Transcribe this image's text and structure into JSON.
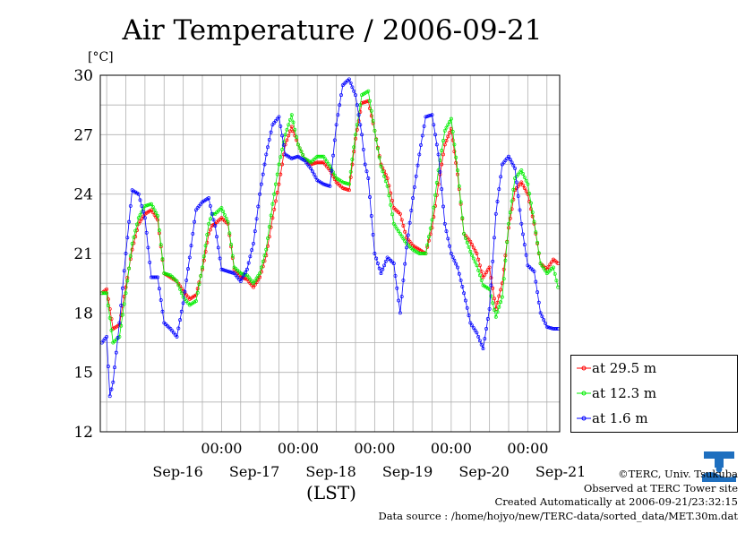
{
  "header": {
    "title": "Air Temperature / 2006-09-21",
    "unit": "[°C]"
  },
  "chart_data": {
    "type": "line",
    "title": "Air Temperature / 2006-09-21",
    "ylabel": "[°C]",
    "xlabel": "(LST)",
    "ylim": [
      12,
      30
    ],
    "yticks": [
      12,
      15,
      18,
      21,
      24,
      27,
      30
    ],
    "xlim_hours": [
      -14,
      130
    ],
    "x_tick_labels": [
      "00:00",
      "00:00",
      "00:00",
      "00:00",
      "00:00"
    ],
    "x_tick_hours": [
      24,
      48,
      72,
      96,
      120
    ],
    "day_labels": [
      "Sep-16",
      "Sep-17",
      "Sep-18",
      "Sep-19",
      "Sep-20",
      "Sep-21"
    ],
    "day_label_hours": [
      12,
      36,
      60,
      84,
      108,
      132
    ],
    "grid": true,
    "legend_position": "right-outside-bottom",
    "x_unit": "hours after Sep-16 00:00 (LST)",
    "series": [
      {
        "name": "at 29.5 m",
        "color": "#ff0000",
        "x": [
          -13.5,
          -12,
          -10,
          -8,
          -6,
          -4,
          -2,
          0,
          2,
          4,
          6,
          8,
          10,
          12,
          14,
          16,
          18,
          20,
          21,
          22,
          24,
          26,
          28,
          30,
          32,
          34,
          36,
          38,
          40,
          42,
          44,
          46,
          48,
          50,
          52,
          54,
          56,
          58,
          60,
          62,
          64,
          66,
          68,
          70,
          72,
          74,
          76,
          78,
          80,
          82,
          84,
          86,
          88,
          90,
          92,
          94,
          96,
          98,
          100,
          102,
          104,
          106,
          108,
          110,
          112,
          114,
          116,
          118,
          120,
          122,
          124,
          126,
          128,
          129.5
        ],
        "y": [
          19.0,
          19.2,
          17.2,
          17.4,
          19.3,
          21.2,
          22.5,
          23.0,
          23.2,
          22.7,
          20.0,
          19.8,
          19.6,
          19.1,
          18.7,
          18.9,
          20.2,
          22.0,
          22.4,
          22.5,
          22.8,
          22.5,
          20.2,
          19.8,
          19.7,
          19.3,
          19.8,
          20.9,
          22.8,
          24.5,
          26.5,
          27.4,
          26.5,
          25.8,
          25.5,
          25.6,
          25.6,
          25.2,
          24.6,
          24.3,
          24.2,
          26.8,
          28.6,
          28.7,
          27.2,
          25.5,
          24.8,
          23.3,
          23.0,
          21.8,
          21.4,
          21.2,
          21.0,
          22.3,
          24.5,
          26.5,
          27.3,
          25.0,
          22.0,
          21.6,
          21.0,
          19.8,
          20.3,
          18.2,
          19.5,
          22.3,
          24.2,
          24.6,
          24.0,
          22.5,
          20.5,
          20.2,
          20.7,
          20.5
        ]
      },
      {
        "name": "at 12.3 m",
        "color": "#00ee00",
        "x": [
          -13.5,
          -12,
          -10,
          -8,
          -6,
          -4,
          -2,
          0,
          2,
          4,
          6,
          8,
          10,
          12,
          14,
          16,
          18,
          20,
          21,
          22,
          24,
          26,
          28,
          30,
          32,
          34,
          36,
          38,
          40,
          42,
          44,
          46,
          48,
          50,
          52,
          54,
          56,
          58,
          60,
          62,
          64,
          66,
          68,
          70,
          72,
          74,
          76,
          78,
          80,
          82,
          84,
          86,
          88,
          90,
          92,
          94,
          96,
          98,
          100,
          102,
          104,
          106,
          108,
          110,
          112,
          114,
          116,
          118,
          120,
          122,
          124,
          126,
          128,
          129.5
        ],
        "y": [
          19.0,
          19.0,
          16.5,
          16.8,
          19.0,
          21.5,
          22.8,
          23.4,
          23.5,
          22.9,
          20.0,
          19.9,
          19.6,
          18.8,
          18.4,
          18.6,
          20.3,
          22.5,
          23.0,
          23.0,
          23.3,
          22.6,
          20.3,
          20.0,
          19.9,
          19.5,
          20.0,
          21.2,
          23.5,
          25.5,
          27.0,
          28.0,
          26.5,
          25.8,
          25.6,
          25.9,
          25.9,
          25.4,
          24.8,
          24.6,
          24.5,
          27.0,
          29.0,
          29.2,
          27.2,
          25.4,
          24.4,
          22.5,
          22.0,
          21.5,
          21.2,
          21.0,
          21.0,
          22.7,
          25.2,
          27.2,
          27.8,
          25.2,
          22.0,
          21.1,
          20.4,
          19.4,
          19.2,
          17.8,
          18.8,
          22.5,
          24.8,
          25.2,
          24.5,
          22.6,
          20.5,
          20.0,
          20.3,
          19.3
        ]
      },
      {
        "name": "at 1.6 m",
        "color": "#0000ff",
        "x": [
          -13.5,
          -12,
          -11,
          -10,
          -8,
          -6,
          -4,
          -2,
          0,
          2,
          4,
          6,
          8,
          10,
          12,
          14,
          16,
          18,
          20,
          21,
          22,
          24,
          26,
          28,
          30,
          32,
          34,
          36,
          38,
          40,
          42,
          44,
          46,
          48,
          50,
          52,
          54,
          56,
          58,
          60,
          62,
          64,
          66,
          68,
          69,
          70,
          72,
          74,
          76,
          78,
          80,
          82,
          84,
          86,
          88,
          90,
          92,
          94,
          96,
          98,
          100,
          102,
          104,
          106,
          108,
          110,
          112,
          114,
          116,
          118,
          120,
          122,
          124,
          126,
          128,
          129.5
        ],
        "y": [
          16.5,
          16.8,
          13.8,
          14.5,
          17.5,
          21.0,
          24.2,
          24.0,
          22.8,
          19.8,
          19.8,
          17.5,
          17.2,
          16.8,
          18.5,
          20.8,
          23.2,
          23.6,
          23.8,
          23.0,
          22.4,
          20.2,
          20.1,
          20.0,
          19.6,
          20.2,
          21.5,
          24.0,
          26.0,
          27.5,
          27.9,
          26.0,
          25.8,
          25.9,
          25.7,
          25.3,
          24.7,
          24.5,
          24.4,
          27.5,
          29.5,
          29.8,
          29.0,
          27.0,
          25.5,
          24.8,
          21.0,
          20.0,
          20.8,
          20.5,
          18.0,
          21.3,
          23.8,
          26.0,
          27.9,
          28.0,
          26.0,
          22.5,
          21.0,
          20.3,
          19.0,
          17.5,
          17.0,
          16.2,
          18.2,
          23.0,
          25.5,
          25.9,
          25.3,
          22.5,
          20.4,
          20.1,
          18.0,
          17.3,
          17.2,
          17.2
        ]
      }
    ]
  },
  "footer": {
    "copyright": "©TERC, Univ. Tsukuba",
    "observed": "Observed at TERC Tower site",
    "created": "Created Automatically at 2006-09-21/23:32:15",
    "source": "Data source : /home/hojyo/new/TERC-data/sorted_data/MET.30m.dat",
    "logo_text": "TERC"
  }
}
